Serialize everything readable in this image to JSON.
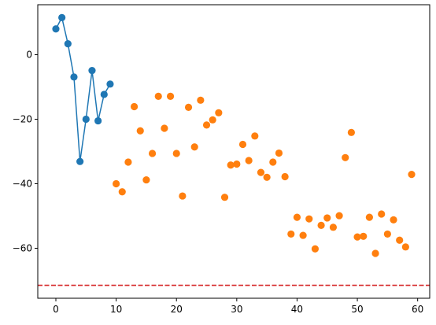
{
  "chart_data": {
    "type": "scatter",
    "title": "",
    "xlabel": "",
    "ylabel": "",
    "xlim": [
      -3.0,
      62.0
    ],
    "ylim": [
      -75.5,
      15.5
    ],
    "xticks": [
      0,
      10,
      20,
      30,
      40,
      50,
      60
    ],
    "yticks": [
      0,
      -20,
      -40,
      -60
    ],
    "xtick_labels": [
      "0",
      "10",
      "20",
      "30",
      "40",
      "50",
      "60"
    ],
    "ytick_labels": [
      "0",
      "−20",
      "−40",
      "−60"
    ],
    "grid": false,
    "legend": "none",
    "series": [
      {
        "color": "#1f77b4",
        "style": "line-markers",
        "x": [
          0,
          1,
          2,
          3,
          4,
          5,
          6,
          7,
          8,
          9
        ],
        "y": [
          8.0,
          11.5,
          3.4,
          -6.9,
          -33.1,
          -20.0,
          -4.9,
          -20.5,
          -12.3,
          -9.1
        ]
      },
      {
        "color": "#ff7f0e",
        "style": "markers",
        "x": [
          10,
          11,
          12,
          13,
          14,
          15,
          16,
          17,
          18,
          19,
          20,
          21,
          22,
          23,
          24,
          25,
          26,
          27,
          28,
          29,
          30,
          31,
          32,
          33,
          34,
          35,
          36,
          37,
          38,
          39,
          40,
          41,
          42,
          43,
          44,
          45,
          46,
          47,
          48,
          49,
          50,
          51,
          52,
          53,
          54,
          55,
          56,
          57,
          58,
          59
        ],
        "y": [
          -40.0,
          -42.5,
          -33.3,
          -16.1,
          -23.6,
          -38.8,
          -30.6,
          -12.9,
          -22.8,
          -12.9,
          -30.6,
          -43.8,
          -16.3,
          -28.6,
          -14.1,
          -21.8,
          -20.2,
          -18.0,
          -44.2,
          -34.2,
          -33.9,
          -27.8,
          -32.8,
          -25.2,
          -36.5,
          -38.0,
          -33.3,
          -30.5,
          -37.8,
          -55.6,
          -50.4,
          -56.0,
          -50.9,
          -60.2,
          -52.9,
          -50.6,
          -53.5,
          -49.9,
          -31.9,
          -24.1,
          -56.5,
          -56.3,
          -50.4,
          -61.6,
          -49.4,
          -55.6,
          -51.2,
          -57.5,
          -59.6,
          -37.1
        ]
      }
    ],
    "reference_lines": [
      {
        "orientation": "horizontal",
        "y": -71.5,
        "color": "#d62728",
        "style": "dashed"
      }
    ]
  }
}
